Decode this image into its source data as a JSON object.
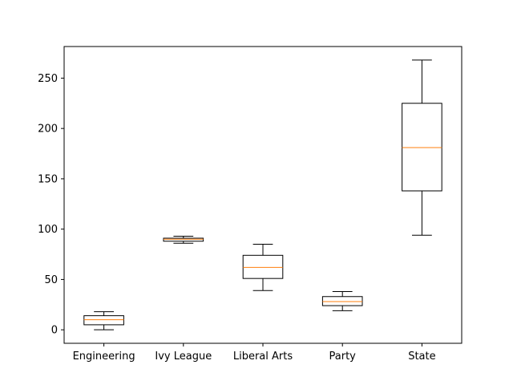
{
  "chart_data": {
    "type": "boxplot",
    "title": "",
    "xlabel": "",
    "ylabel": "",
    "ylim": [
      -13.4,
      281.4
    ],
    "yticks": [
      0,
      50,
      100,
      150,
      200,
      250
    ],
    "categories": [
      "Engineering",
      "Ivy League",
      "Liberal Arts",
      "Party",
      "State"
    ],
    "boxes": [
      {
        "name": "Engineering",
        "whisker_low": 0,
        "q1": 5,
        "median": 10,
        "q3": 14,
        "whisker_high": 18
      },
      {
        "name": "Ivy League",
        "whisker_low": 86,
        "q1": 88,
        "median": 90,
        "q3": 91,
        "whisker_high": 93
      },
      {
        "name": "Liberal Arts",
        "whisker_low": 39,
        "q1": 51,
        "median": 62,
        "q3": 74,
        "whisker_high": 85
      },
      {
        "name": "Party",
        "whisker_low": 19,
        "q1": 24,
        "median": 28,
        "q3": 33,
        "whisker_high": 38
      },
      {
        "name": "State",
        "whisker_low": 94,
        "q1": 138,
        "median": 181,
        "q3": 225,
        "whisker_high": 268
      }
    ],
    "grid": false,
    "colors": {
      "box": "#000000",
      "median": "#ff7f0e"
    }
  }
}
